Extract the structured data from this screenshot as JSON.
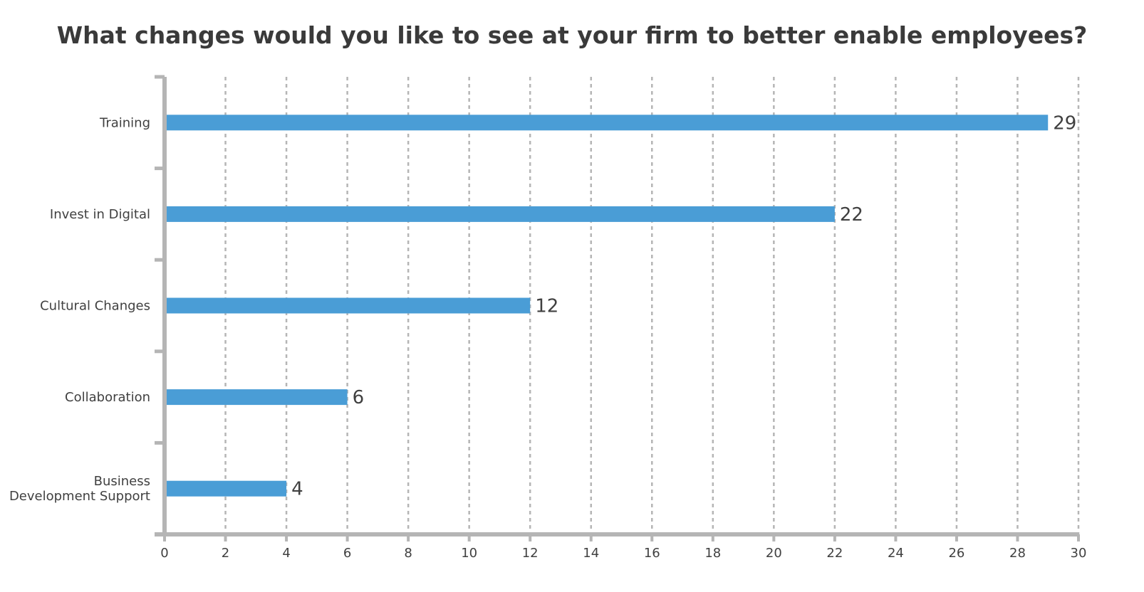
{
  "title": "What changes would you like to see at your firm to better enable employees?",
  "chart_data": {
    "type": "bar",
    "orientation": "horizontal",
    "title": "What changes would you like to see at your firm to better enable employees?",
    "categories": [
      "Training",
      "Invest in Digital",
      "Cultural Changes",
      "Collaboration",
      "Business Development Support"
    ],
    "category_lines": [
      [
        "Training"
      ],
      [
        "Invest in Digital"
      ],
      [
        "Cultural Changes"
      ],
      [
        "Collaboration"
      ],
      [
        "Business",
        "Development Support"
      ]
    ],
    "values": [
      29,
      22,
      12,
      6,
      4
    ],
    "data_labels": [
      "29",
      "22",
      "12",
      "6",
      "4"
    ],
    "xlim": [
      0,
      30
    ],
    "xticks": [
      0,
      2,
      4,
      6,
      8,
      10,
      12,
      14,
      16,
      18,
      20,
      22,
      24,
      26,
      28,
      30
    ],
    "xlabel": "",
    "ylabel": "",
    "grid": "vertical-dashed",
    "legend": "none",
    "colors": {
      "bar": "#4a9dd6",
      "axis": "#b5b5b5",
      "grid": "#b5b5b5",
      "text": "#404040"
    }
  }
}
